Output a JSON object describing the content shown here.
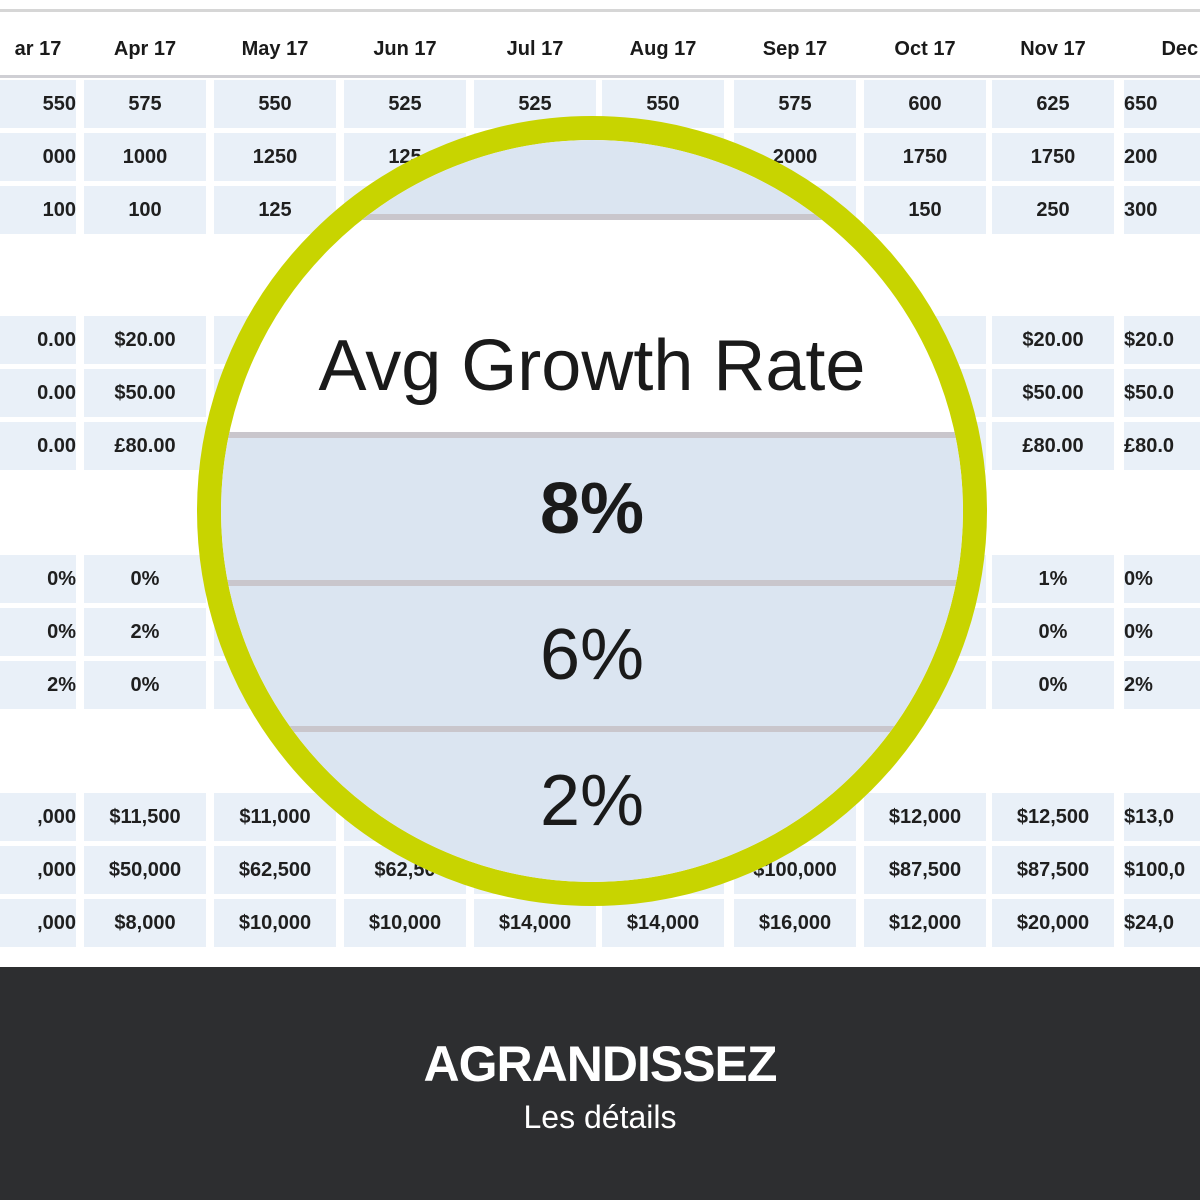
{
  "sheet": {
    "months": [
      "ar 17",
      "Apr 17",
      "May 17",
      "Jun 17",
      "Jul 17",
      "Aug 17",
      "Sep 17",
      "Oct 17",
      "Nov 17",
      "Dec '"
    ],
    "rows": [
      [
        "550",
        "575",
        "550",
        "525",
        "525",
        "550",
        "575",
        "600",
        "625",
        "650"
      ],
      [
        "000",
        "1000",
        "1250",
        "125",
        "",
        "",
        "2000",
        "1750",
        "1750",
        "200"
      ],
      [
        "100",
        "100",
        "125",
        "",
        "",
        "",
        "",
        "150",
        "250",
        "300"
      ],
      [
        "0.00",
        "$20.00",
        "",
        "",
        "",
        "",
        "",
        ")",
        "$20.00",
        "$20.0"
      ],
      [
        "0.00",
        "$50.00",
        "",
        "",
        "",
        "",
        "",
        "",
        "$50.00",
        "$50.0"
      ],
      [
        "0.00",
        "£80.00",
        "",
        "",
        "",
        "",
        "",
        "",
        "£80.00",
        "£80.0"
      ],
      [
        "0%",
        "0%",
        "",
        "",
        "",
        "",
        "",
        "",
        "1%",
        "0%"
      ],
      [
        "0%",
        "2%",
        "",
        "",
        "",
        "",
        "",
        "",
        "0%",
        "0%"
      ],
      [
        "2%",
        "0%",
        "",
        "",
        "",
        "",
        "",
        "",
        "0%",
        "2%"
      ],
      [
        ",000",
        "$11,500",
        "$11,000",
        "",
        "",
        "",
        "",
        "$12,000",
        "$12,500",
        "$13,0"
      ],
      [
        ",000",
        "$50,000",
        "$62,500",
        "$62,50",
        "",
        "",
        "$100,000",
        "$87,500",
        "$87,500",
        "$100,0"
      ],
      [
        ",000",
        "$8,000",
        "$10,000",
        "$10,000",
        "$14,000",
        "$14,000",
        "$16,000",
        "$12,000",
        "$20,000",
        "$24,0"
      ]
    ]
  },
  "magnifier": {
    "heading": "Avg Growth Rate",
    "rates": [
      "8%",
      "6%",
      "2%"
    ]
  },
  "footer": {
    "title": "AGRANDISSEZ",
    "subtitle": "Les détails"
  },
  "colors": {
    "accent_ring": "#c8d400",
    "cell_fill": "#e9f0f8",
    "footer_bg": "#2d2e30"
  }
}
